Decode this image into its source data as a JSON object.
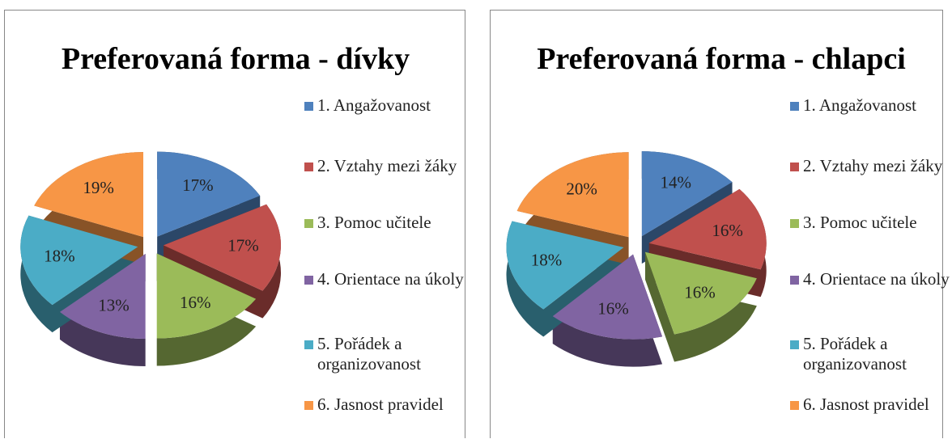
{
  "chart_data": [
    {
      "type": "pie",
      "title": "Preferovaná forma - dívky",
      "categories": [
        "1. Angažovanost",
        "2. Vztahy mezi žáky",
        "3. Pomoc učitele",
        "4. Orientace na úkoly",
        "5. Pořádek a organizovanost",
        "6. Jasnost pravidel"
      ],
      "values": [
        17,
        17,
        16,
        13,
        18,
        19
      ],
      "value_labels": [
        "17%",
        "17%",
        "16%",
        "13%",
        "18%",
        "19%"
      ],
      "colors": [
        "#4f81bd",
        "#c0504d",
        "#9bbb59",
        "#8064a2",
        "#4bacc6",
        "#f79646"
      ]
    },
    {
      "type": "pie",
      "title": "Preferovaná forma - chlapci",
      "categories": [
        "1. Angažovanost",
        "2. Vztahy mezi žáky",
        "3. Pomoc učitele",
        "4. Orientace na úkoly",
        "5. Pořádek a organizovanost",
        "6. Jasnost pravidel"
      ],
      "values": [
        14,
        16,
        16,
        16,
        18,
        20
      ],
      "value_labels": [
        "14%",
        "16%",
        "16%",
        "16%",
        "18%",
        "20%"
      ],
      "colors": [
        "#4f81bd",
        "#c0504d",
        "#9bbb59",
        "#8064a2",
        "#4bacc6",
        "#f79646"
      ]
    }
  ]
}
